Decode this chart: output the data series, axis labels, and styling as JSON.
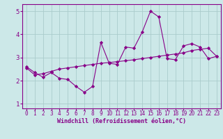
{
  "line1_x": [
    0,
    1,
    2,
    3,
    4,
    5,
    6,
    7,
    8,
    9,
    10,
    11,
    12,
    13,
    14,
    15,
    16,
    17,
    18,
    19,
    20,
    21,
    22,
    23
  ],
  "line1_y": [
    2.6,
    2.35,
    2.15,
    2.35,
    2.1,
    2.05,
    1.75,
    1.5,
    1.75,
    3.65,
    2.75,
    2.7,
    3.45,
    3.4,
    4.1,
    5.0,
    4.75,
    2.95,
    2.9,
    3.5,
    3.6,
    3.45,
    2.95,
    3.05
  ],
  "line2_x": [
    0,
    1,
    2,
    3,
    4,
    5,
    6,
    7,
    8,
    9,
    10,
    11,
    12,
    13,
    14,
    15,
    16,
    17,
    18,
    19,
    20,
    21,
    22,
    23
  ],
  "line2_y": [
    2.55,
    2.25,
    2.3,
    2.4,
    2.5,
    2.55,
    2.6,
    2.65,
    2.7,
    2.75,
    2.78,
    2.82,
    2.86,
    2.9,
    2.95,
    3.0,
    3.05,
    3.1,
    3.15,
    3.2,
    3.3,
    3.35,
    3.4,
    3.05
  ],
  "line_color": "#880088",
  "bg_color": "#cce8e8",
  "grid_color": "#aacccc",
  "xlabel": "Windchill (Refroidissement éolien,°C)",
  "ylim": [
    0.8,
    5.3
  ],
  "xlim": [
    -0.5,
    23.5
  ],
  "yticks": [
    1,
    2,
    3,
    4,
    5
  ],
  "xticks": [
    0,
    1,
    2,
    3,
    4,
    5,
    6,
    7,
    8,
    9,
    10,
    11,
    12,
    13,
    14,
    15,
    16,
    17,
    18,
    19,
    20,
    21,
    22,
    23
  ],
  "tick_fontsize": 5.5,
  "xlabel_fontsize": 6.0,
  "ytick_fontsize": 6.5
}
